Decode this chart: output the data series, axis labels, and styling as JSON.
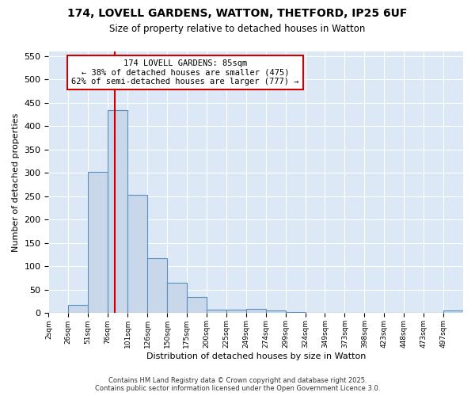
{
  "title_line1": "174, LOVELL GARDENS, WATTON, THETFORD, IP25 6UF",
  "title_line2": "Size of property relative to detached houses in Watton",
  "xlabel": "Distribution of detached houses by size in Watton",
  "ylabel": "Number of detached properties",
  "bar_categories": [
    "2sqm",
    "26sqm",
    "51sqm",
    "76sqm",
    "101sqm",
    "126sqm",
    "150sqm",
    "175sqm",
    "200sqm",
    "225sqm",
    "249sqm",
    "274sqm",
    "299sqm",
    "324sqm",
    "349sqm",
    "373sqm",
    "398sqm",
    "423sqm",
    "448sqm",
    "473sqm",
    "497sqm"
  ],
  "bar_heights": [
    0,
    18,
    303,
    435,
    254,
    118,
    65,
    35,
    8,
    8,
    10,
    5,
    3,
    0,
    0,
    0,
    0,
    0,
    0,
    0,
    5
  ],
  "bar_color": "#c8d8ea",
  "bar_edge_color": "#5a8fbf",
  "figure_bg": "#ffffff",
  "axes_bg": "#dce8f5",
  "grid_color": "#ffffff",
  "vline_color": "#cc0000",
  "annotation_text": "174 LOVELL GARDENS: 85sqm\n← 38% of detached houses are smaller (475)\n62% of semi-detached houses are larger (777) →",
  "annotation_box_facecolor": "#ffffff",
  "annotation_border_color": "#cc0000",
  "ylim": [
    0,
    560
  ],
  "yticks": [
    0,
    50,
    100,
    150,
    200,
    250,
    300,
    350,
    400,
    450,
    500,
    550
  ],
  "footer_line1": "Contains HM Land Registry data © Crown copyright and database right 2025.",
  "footer_line2": "Contains public sector information licensed under the Open Government Licence 3.0."
}
